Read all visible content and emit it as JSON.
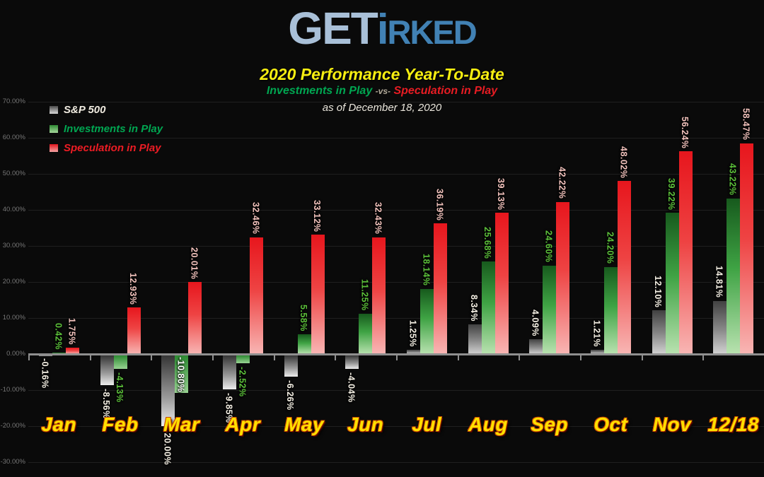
{
  "header": {
    "logo_get": "GET",
    "logo_i": "i",
    "logo_rked": "RKED",
    "title": "2020 Performance Year-To-Date",
    "compare_left": "Investments in Play",
    "compare_mid": "-vs-",
    "compare_right": "Speculation in Play",
    "as_of": "as of December 18, 2020"
  },
  "legend": [
    {
      "label": "S&P 500",
      "series": "sp500"
    },
    {
      "label": "Investments in Play",
      "series": "investments"
    },
    {
      "label": "Speculation in Play",
      "series": "speculation"
    }
  ],
  "colors": {
    "background": "#0a0a0a",
    "title_yellow": "#f7ee11",
    "investments_green": "#00a651",
    "speculation_red": "#e81c23",
    "month_yellow": "#ffe000",
    "logo_light": "#a9c0d8",
    "logo_dark": "#4181b4",
    "sp500_label": "#f5f0e4",
    "investments_label": "#5cc13a",
    "speculation_label": "#f3c3bd",
    "inside_label_white": "#ffffff",
    "axis_gray": "#8f8f8f",
    "gridline_gray": "#1f1f1f",
    "ytick_gray": "#767676"
  },
  "chart_data": {
    "type": "bar",
    "title": "2020 Performance Year-To-Date",
    "subtitle": "Investments in Play -vs- Speculation in Play",
    "as_of": "as of December 18, 2020",
    "categories": [
      "Jan",
      "Feb",
      "Mar",
      "Apr",
      "May",
      "Jun",
      "Jul",
      "Aug",
      "Sep",
      "Oct",
      "Nov",
      "12/18"
    ],
    "series": [
      {
        "name": "S&P 500",
        "key": "sp",
        "values": [
          -0.16,
          -8.56,
          -20.0,
          -9.85,
          -6.26,
          -4.04,
          1.25,
          8.34,
          4.09,
          1.21,
          12.1,
          14.81
        ]
      },
      {
        "name": "Investments in Play",
        "key": "inv",
        "values": [
          0.42,
          -4.13,
          -10.8,
          -2.52,
          5.58,
          11.25,
          18.14,
          25.68,
          24.6,
          24.2,
          39.22,
          43.22
        ]
      },
      {
        "name": "Speculation in Play",
        "key": "spec",
        "values": [
          1.75,
          12.93,
          20.01,
          32.46,
          33.12,
          32.43,
          36.19,
          39.13,
          42.22,
          48.02,
          56.24,
          58.47
        ]
      }
    ],
    "ylim": [
      -30,
      70
    ],
    "ytick_step": 10,
    "ytick_labels": [
      "70.00%",
      "60.00%",
      "50.00%",
      "40.00%",
      "30.00%",
      "20.00%",
      "10.00%",
      "0.00%",
      "-10.00%",
      "-20.00%",
      "-30.00%"
    ],
    "grid": true,
    "legend_position": "top-left",
    "value_label_format": "0.00%",
    "value_label_rotation": 90,
    "label_overrides": [
      {
        "series": 1,
        "index": 2,
        "position": "inside",
        "color": "#ffffff"
      }
    ]
  }
}
